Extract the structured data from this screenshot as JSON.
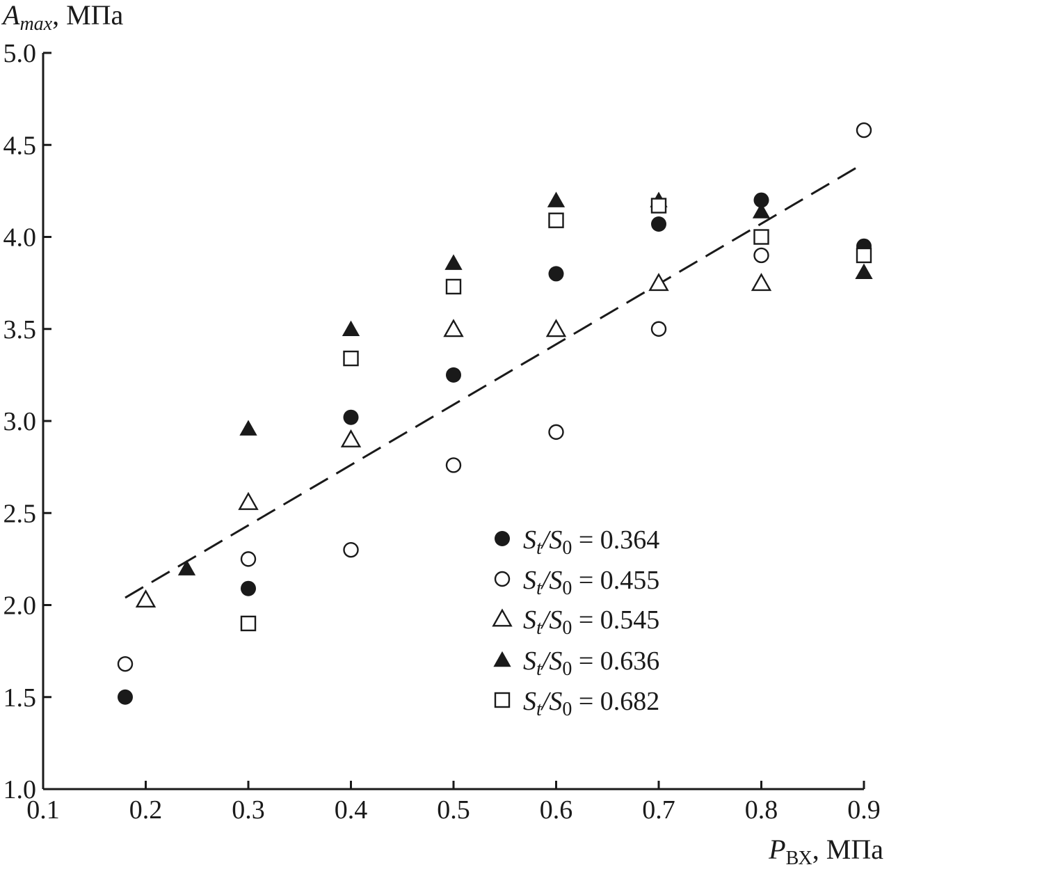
{
  "chart_data": {
    "type": "scatter",
    "ylabel": {
      "symbol": "A",
      "subscript": "max",
      "unit": ", МПа"
    },
    "xlabel": {
      "symbol": "P",
      "subscript": "ВХ",
      "unit": ", МПа"
    },
    "xlim": [
      0.1,
      0.9
    ],
    "ylim": [
      1.0,
      5.0
    ],
    "x_ticks": [
      "0.1",
      "0.2",
      "0.3",
      "0.4",
      "0.5",
      "0.6",
      "0.7",
      "0.8",
      "0.9"
    ],
    "y_ticks": [
      "1.0",
      "1.5",
      "2.0",
      "2.5",
      "3.0",
      "3.5",
      "4.0",
      "4.5",
      "5.0"
    ],
    "grid": false,
    "legend_position": "bottom-right",
    "series": [
      {
        "name": "St/S0 = 0.364",
        "legend": {
          "S": "S",
          "t": "t",
          "slash": "/",
          "S2": "S",
          "zero": "0",
          "value": " = 0.364"
        },
        "marker": "filled-circle",
        "points": [
          [
            0.18,
            1.5
          ],
          [
            0.3,
            2.09
          ],
          [
            0.4,
            3.02
          ],
          [
            0.5,
            3.25
          ],
          [
            0.6,
            3.8
          ],
          [
            0.7,
            4.07
          ],
          [
            0.8,
            4.2
          ],
          [
            0.9,
            3.95
          ]
        ]
      },
      {
        "name": "St/S0 = 0.455",
        "legend": {
          "S": "S",
          "t": "t",
          "slash": "/",
          "S2": "S",
          "zero": "0",
          "value": " = 0.455"
        },
        "marker": "open-circle",
        "points": [
          [
            0.18,
            1.68
          ],
          [
            0.3,
            2.25
          ],
          [
            0.4,
            2.3
          ],
          [
            0.5,
            2.76
          ],
          [
            0.6,
            2.94
          ],
          [
            0.7,
            3.5
          ],
          [
            0.8,
            3.9
          ],
          [
            0.9,
            4.58
          ]
        ]
      },
      {
        "name": "St/S0 = 0.545",
        "legend": {
          "S": "S",
          "t": "t",
          "slash": "/",
          "S2": "S",
          "zero": "0",
          "value": " = 0.545"
        },
        "marker": "open-triangle",
        "points": [
          [
            0.2,
            2.03
          ],
          [
            0.3,
            2.56
          ],
          [
            0.4,
            2.9
          ],
          [
            0.5,
            3.5
          ],
          [
            0.6,
            3.5
          ],
          [
            0.7,
            3.75
          ],
          [
            0.8,
            3.75
          ]
        ]
      },
      {
        "name": "St/S0 = 0.636",
        "legend": {
          "S": "S",
          "t": "t",
          "slash": "/",
          "S2": "S",
          "zero": "0",
          "value": " = 0.636"
        },
        "marker": "filled-triangle",
        "points": [
          [
            0.24,
            2.2
          ],
          [
            0.3,
            2.96
          ],
          [
            0.4,
            3.5
          ],
          [
            0.5,
            3.86
          ],
          [
            0.6,
            4.2
          ],
          [
            0.7,
            4.2
          ],
          [
            0.8,
            4.14
          ],
          [
            0.9,
            3.81
          ]
        ]
      },
      {
        "name": "St/S0 = 0.682",
        "legend": {
          "S": "S",
          "t": "t",
          "slash": "/",
          "S2": "S",
          "zero": "0",
          "value": " = 0.682"
        },
        "marker": "open-square",
        "points": [
          [
            0.3,
            1.9
          ],
          [
            0.4,
            3.34
          ],
          [
            0.5,
            3.73
          ],
          [
            0.6,
            4.09
          ],
          [
            0.7,
            4.17
          ],
          [
            0.8,
            4.0
          ],
          [
            0.9,
            3.9
          ]
        ]
      }
    ],
    "trend_line": {
      "style": "dashed",
      "from": [
        0.18,
        2.04
      ],
      "to": [
        0.9,
        4.4
      ]
    }
  }
}
